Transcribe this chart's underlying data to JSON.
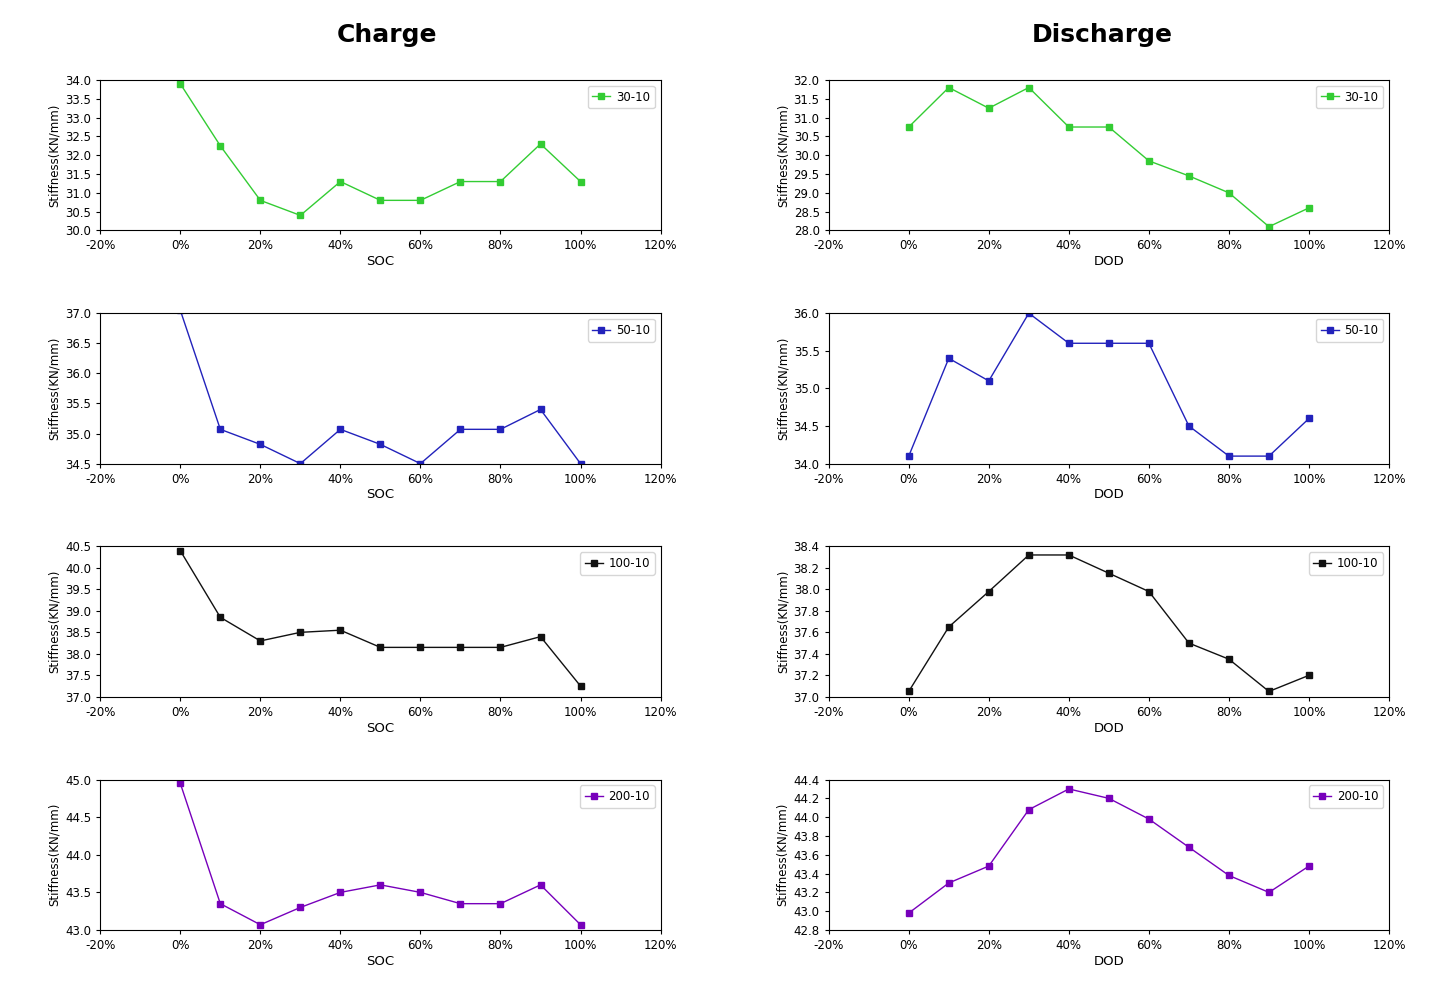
{
  "charge": {
    "30-10": {
      "x": [
        0.0,
        0.1,
        0.2,
        0.3,
        0.4,
        0.5,
        0.6,
        0.7,
        0.8,
        0.9,
        1.0
      ],
      "y": [
        33.9,
        32.25,
        30.8,
        30.4,
        31.3,
        30.8,
        30.8,
        31.3,
        31.3,
        32.3,
        31.3
      ],
      "color": "#33cc33",
      "ylim": [
        30.0,
        34.0
      ],
      "yticks": [
        30.0,
        30.5,
        31.0,
        31.5,
        32.0,
        32.5,
        33.0,
        33.5,
        34.0
      ]
    },
    "50-10": {
      "x": [
        0.0,
        0.1,
        0.2,
        0.3,
        0.4,
        0.5,
        0.6,
        0.7,
        0.8,
        0.9,
        1.0
      ],
      "y": [
        37.05,
        35.07,
        34.82,
        34.5,
        35.07,
        34.82,
        34.5,
        35.07,
        35.07,
        35.4,
        34.5
      ],
      "color": "#2222bb",
      "ylim": [
        34.5,
        37.0
      ],
      "yticks": [
        34.5,
        35.0,
        35.5,
        36.0,
        36.5,
        37.0
      ]
    },
    "100-10": {
      "x": [
        0.0,
        0.1,
        0.2,
        0.3,
        0.4,
        0.5,
        0.6,
        0.7,
        0.8,
        0.9,
        1.0
      ],
      "y": [
        40.4,
        38.85,
        38.3,
        38.5,
        38.55,
        38.15,
        38.15,
        38.15,
        38.15,
        38.4,
        37.25
      ],
      "color": "#111111",
      "ylim": [
        37.0,
        40.5
      ],
      "yticks": [
        37.0,
        37.5,
        38.0,
        38.5,
        39.0,
        39.5,
        40.0,
        40.5
      ]
    },
    "200-10": {
      "x": [
        0.0,
        0.1,
        0.2,
        0.3,
        0.4,
        0.5,
        0.6,
        0.7,
        0.8,
        0.9,
        1.0
      ],
      "y": [
        44.95,
        43.35,
        43.07,
        43.3,
        43.5,
        43.6,
        43.5,
        43.35,
        43.35,
        43.6,
        43.07
      ],
      "color": "#7700bb",
      "ylim": [
        43.0,
        45.0
      ],
      "yticks": [
        43.0,
        43.5,
        44.0,
        44.5,
        45.0
      ]
    }
  },
  "discharge": {
    "30-10": {
      "x": [
        0.0,
        0.1,
        0.2,
        0.3,
        0.4,
        0.5,
        0.6,
        0.7,
        0.8,
        0.9,
        1.0
      ],
      "y": [
        30.75,
        31.8,
        31.25,
        31.8,
        30.75,
        30.75,
        29.85,
        29.45,
        29.0,
        28.1,
        28.6
      ],
      "color": "#33cc33",
      "ylim": [
        28.0,
        32.0
      ],
      "yticks": [
        28.0,
        28.5,
        29.0,
        29.5,
        30.0,
        30.5,
        31.0,
        31.5,
        32.0
      ]
    },
    "50-10": {
      "x": [
        0.0,
        0.1,
        0.2,
        0.3,
        0.4,
        0.5,
        0.6,
        0.7,
        0.8,
        0.9,
        1.0
      ],
      "y": [
        34.1,
        35.4,
        35.1,
        36.0,
        35.6,
        35.6,
        35.6,
        34.5,
        34.1,
        34.1,
        34.6
      ],
      "color": "#2222bb",
      "ylim": [
        34.0,
        36.0
      ],
      "yticks": [
        34.0,
        34.5,
        35.0,
        35.5,
        36.0
      ]
    },
    "100-10": {
      "x": [
        0.0,
        0.1,
        0.2,
        0.3,
        0.4,
        0.5,
        0.6,
        0.7,
        0.8,
        0.9,
        1.0
      ],
      "y": [
        37.05,
        37.65,
        37.98,
        38.32,
        38.32,
        38.15,
        37.98,
        37.5,
        37.35,
        37.05,
        37.2
      ],
      "color": "#111111",
      "ylim": [
        37.0,
        38.4
      ],
      "yticks": [
        37.0,
        37.2,
        37.4,
        37.6,
        37.8,
        38.0,
        38.2,
        38.4
      ]
    },
    "200-10": {
      "x": [
        0.0,
        0.1,
        0.2,
        0.3,
        0.4,
        0.5,
        0.6,
        0.7,
        0.8,
        0.9,
        1.0
      ],
      "y": [
        42.98,
        43.3,
        43.48,
        44.08,
        44.3,
        44.2,
        43.98,
        43.68,
        43.38,
        43.2,
        43.48
      ],
      "color": "#7700bb",
      "ylim": [
        42.8,
        44.4
      ],
      "yticks": [
        42.8,
        43.0,
        43.2,
        43.4,
        43.6,
        43.8,
        44.0,
        44.2,
        44.4
      ]
    }
  },
  "x_ticks": [
    -0.2,
    0.0,
    0.2,
    0.4,
    0.6,
    0.8,
    1.0,
    1.2
  ],
  "x_tick_labels": [
    "-20%",
    "0%",
    "20%",
    "40%",
    "60%",
    "80%",
    "100%",
    "120%"
  ],
  "xlim": [
    -0.2,
    1.2
  ],
  "charge_xlabel": "SOC",
  "discharge_xlabel": "DOD",
  "ylabel": "Stiffness(KN/mm)",
  "charge_title": "Charge",
  "discharge_title": "Discharge",
  "marker": "s",
  "markersize": 4,
  "linewidth": 1.0
}
